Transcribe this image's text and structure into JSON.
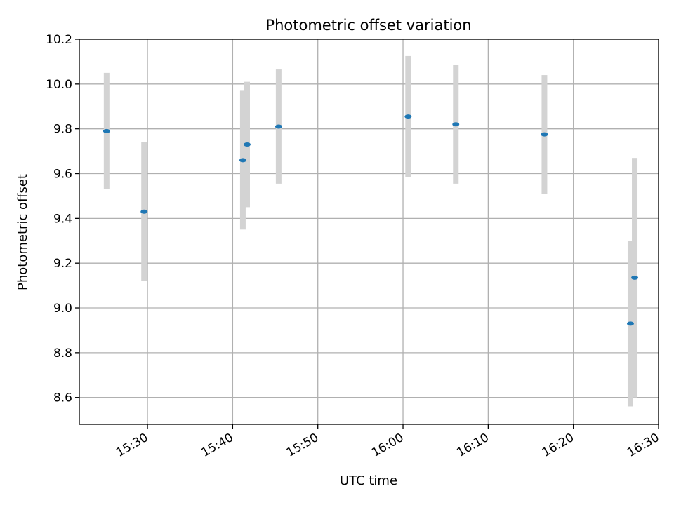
{
  "chart_data": {
    "type": "scatter",
    "title": "Photometric offset variation",
    "xlabel": "UTC time",
    "ylabel": "Photometric offset",
    "xlim": [
      "15:22",
      "16:30"
    ],
    "ylim": [
      8.48,
      10.2
    ],
    "x_ticks": [
      "15:30",
      "15:40",
      "15:50",
      "16:00",
      "16:10",
      "16:20",
      "16:30"
    ],
    "y_ticks": [
      "8.6",
      "8.8",
      "9.0",
      "9.2",
      "9.4",
      "9.6",
      "9.8",
      "10.0",
      "10.2"
    ],
    "grid": true,
    "points": [
      {
        "time": "15:25:12",
        "y": 9.79,
        "err": 0.26
      },
      {
        "time": "15:29:36",
        "y": 9.43,
        "err": 0.31
      },
      {
        "time": "15:41:12",
        "y": 9.66,
        "err": 0.31
      },
      {
        "time": "15:41:42",
        "y": 9.73,
        "err": 0.28
      },
      {
        "time": "15:45:24",
        "y": 9.81,
        "err": 0.255
      },
      {
        "time": "16:00:36",
        "y": 9.855,
        "err": 0.27
      },
      {
        "time": "16:06:12",
        "y": 9.82,
        "err": 0.265
      },
      {
        "time": "16:16:36",
        "y": 9.775,
        "err": 0.265
      },
      {
        "time": "16:26:42",
        "y": 8.93,
        "err": 0.37
      },
      {
        "time": "16:27:12",
        "y": 9.135,
        "err": 0.535
      }
    ],
    "colors": {
      "marker": "#1f77b4",
      "errorbar": "#d3d3d3",
      "grid": "#b0b0b0"
    }
  }
}
